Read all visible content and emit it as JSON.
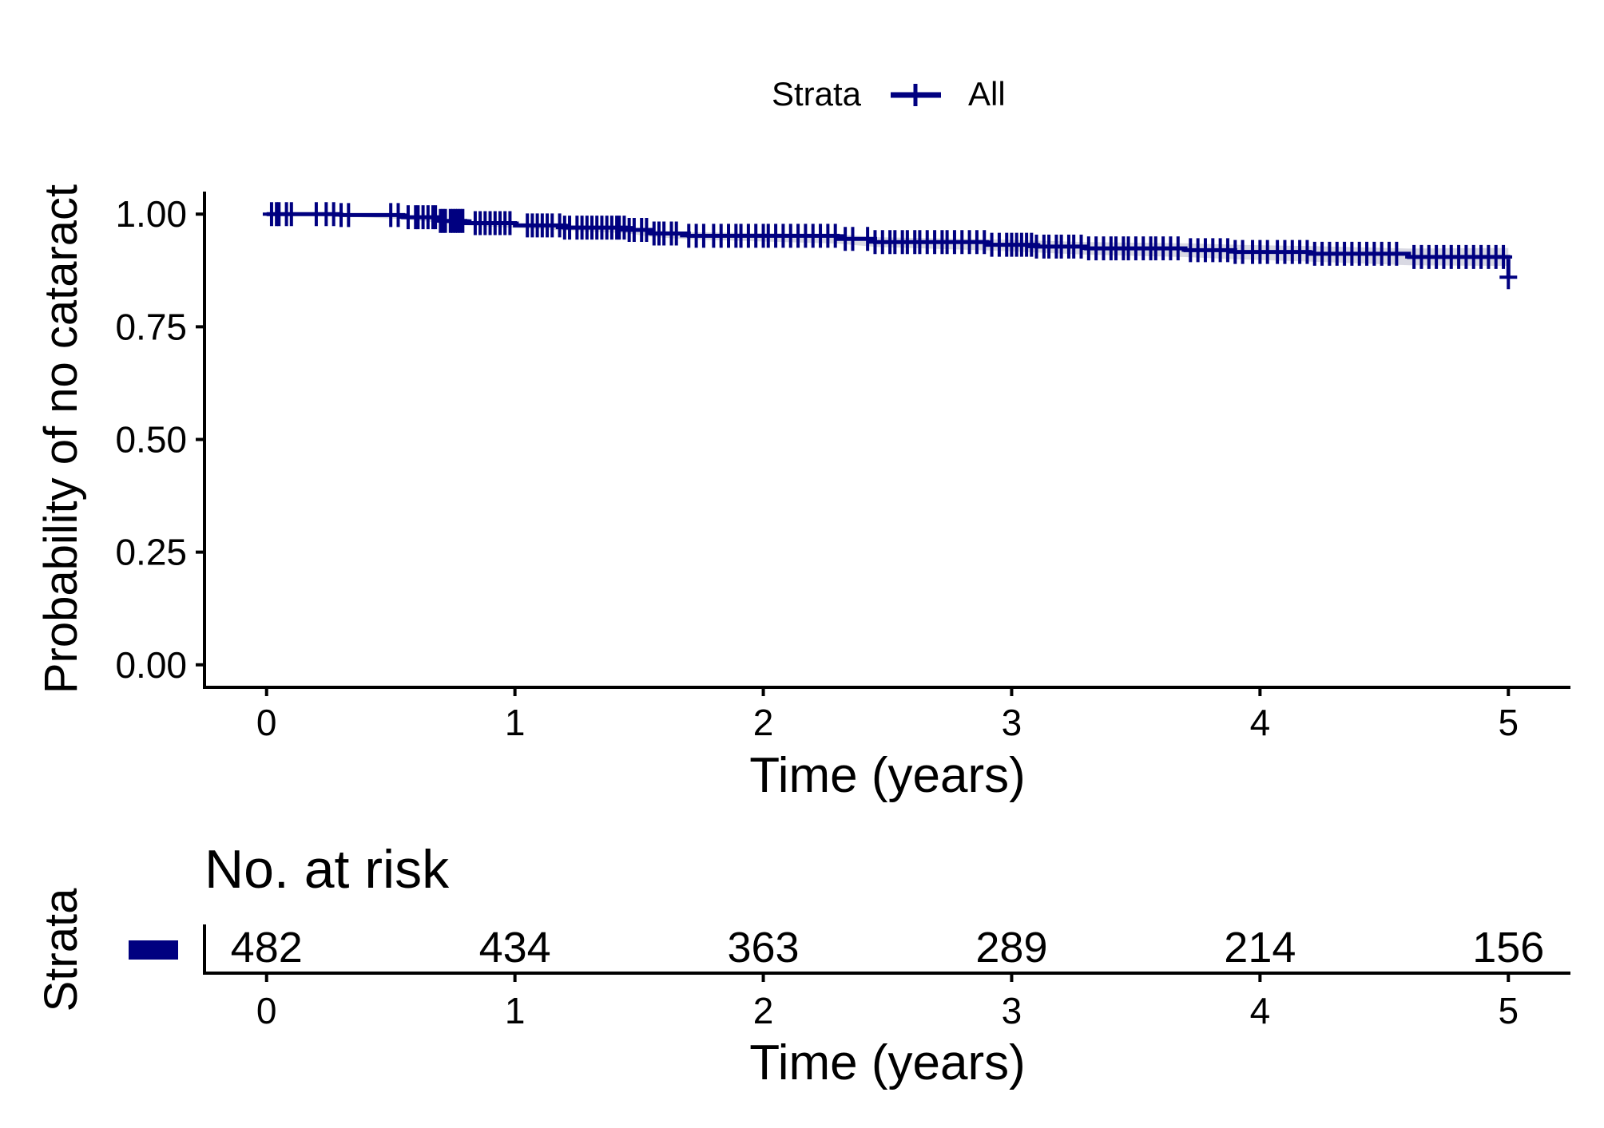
{
  "chart_data": {
    "type": "line",
    "subtype": "kaplan-meier",
    "legend": {
      "title": "Strata",
      "entries": [
        "All"
      ],
      "placement": "top"
    },
    "series": [
      {
        "name": "All",
        "color": "#000080",
        "ci_color": "#d9d9e3",
        "steps": [
          [
            0,
            1.0
          ],
          [
            0.3,
            0.998
          ],
          [
            0.55,
            0.993
          ],
          [
            0.7,
            0.985
          ],
          [
            0.8,
            0.98
          ],
          [
            1.0,
            0.975
          ],
          [
            1.2,
            0.97
          ],
          [
            1.45,
            0.965
          ],
          [
            1.55,
            0.957
          ],
          [
            1.7,
            0.952
          ],
          [
            2.3,
            0.945
          ],
          [
            2.45,
            0.938
          ],
          [
            2.9,
            0.932
          ],
          [
            3.1,
            0.928
          ],
          [
            3.3,
            0.924
          ],
          [
            3.7,
            0.92
          ],
          [
            3.9,
            0.916
          ],
          [
            4.2,
            0.912
          ],
          [
            4.6,
            0.905
          ],
          [
            5.0,
            0.905
          ]
        ],
        "end_point": [
          5.0,
          0.9
        ],
        "final_drop": [
          5.0,
          0.86
        ],
        "censor_times": [
          0.02,
          0.04,
          0.05,
          0.08,
          0.1,
          0.2,
          0.24,
          0.27,
          0.3,
          0.33,
          0.5,
          0.53,
          0.57,
          0.6,
          0.61,
          0.63,
          0.65,
          0.67,
          0.68,
          0.7,
          0.71,
          0.72,
          0.74,
          0.75,
          0.76,
          0.77,
          0.78,
          0.79,
          0.84,
          0.86,
          0.88,
          0.9,
          0.92,
          0.94,
          0.96,
          0.98,
          1.05,
          1.07,
          1.09,
          1.11,
          1.13,
          1.15,
          1.18,
          1.2,
          1.22,
          1.25,
          1.27,
          1.29,
          1.31,
          1.33,
          1.35,
          1.37,
          1.39,
          1.41,
          1.42,
          1.44,
          1.46,
          1.48,
          1.51,
          1.53,
          1.56,
          1.58,
          1.6,
          1.63,
          1.65,
          1.7,
          1.73,
          1.76,
          1.8,
          1.83,
          1.86,
          1.89,
          1.91,
          1.94,
          1.97,
          2.0,
          2.02,
          2.05,
          2.08,
          2.11,
          2.14,
          2.17,
          2.2,
          2.23,
          2.26,
          2.29,
          2.33,
          2.36,
          2.42,
          2.45,
          2.48,
          2.51,
          2.53,
          2.56,
          2.58,
          2.61,
          2.63,
          2.66,
          2.69,
          2.72,
          2.74,
          2.77,
          2.8,
          2.83,
          2.86,
          2.89,
          2.92,
          2.95,
          2.98,
          3.0,
          3.02,
          3.04,
          3.06,
          3.08,
          3.1,
          3.13,
          3.15,
          3.18,
          3.2,
          3.23,
          3.25,
          3.28,
          3.31,
          3.34,
          3.37,
          3.4,
          3.42,
          3.45,
          3.47,
          3.5,
          3.53,
          3.56,
          3.58,
          3.61,
          3.64,
          3.67,
          3.72,
          3.75,
          3.78,
          3.81,
          3.84,
          3.87,
          3.9,
          3.93,
          3.97,
          4.0,
          4.03,
          4.07,
          4.1,
          4.13,
          4.16,
          4.19,
          4.22,
          4.25,
          4.28,
          4.31,
          4.34,
          4.37,
          4.4,
          4.43,
          4.46,
          4.49,
          4.52,
          4.55,
          4.62,
          4.65,
          4.68,
          4.71,
          4.74,
          4.77,
          4.8,
          4.83,
          4.86,
          4.89,
          4.92,
          4.95,
          4.98
        ]
      }
    ],
    "xlabel": "Time (years)",
    "ylabel": "Probability of no cataract",
    "xlim": [
      -0.25,
      5.25
    ],
    "ylim": [
      -0.05,
      1.05
    ],
    "x_ticks": [
      "0",
      "1",
      "2",
      "3",
      "4",
      "5"
    ],
    "y_ticks": [
      "0.00",
      "0.25",
      "0.50",
      "0.75",
      "1.00"
    ],
    "grid": false,
    "risk_table": {
      "title": "No. at risk",
      "ylabel": "Strata",
      "xlabel": "Time (years)",
      "times": [
        "0",
        "1",
        "2",
        "3",
        "4",
        "5"
      ],
      "counts": [
        "482",
        "434",
        "363",
        "289",
        "214",
        "156"
      ]
    }
  }
}
